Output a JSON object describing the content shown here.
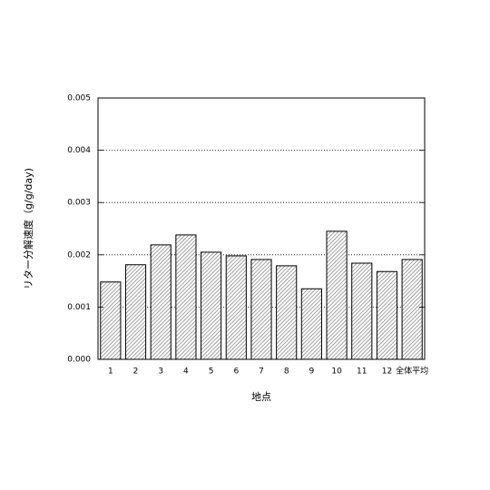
{
  "chart_data": {
    "type": "bar",
    "xlabel": "地点",
    "ylabel": "リター分解速度（g/g/day)",
    "categories": [
      "1",
      "2",
      "3",
      "4",
      "5",
      "6",
      "7",
      "8",
      "9",
      "10",
      "11",
      "12",
      "全体平均"
    ],
    "values": [
      0.00148,
      0.00181,
      0.00219,
      0.00238,
      0.00205,
      0.00198,
      0.00191,
      0.00179,
      0.00135,
      0.00245,
      0.00184,
      0.00168,
      0.00191
    ],
    "ylim": [
      0,
      0.005
    ],
    "yticks": [
      {
        "value": 0,
        "label": "0.000"
      },
      {
        "value": 0.001,
        "label": "0.001"
      },
      {
        "value": 0.002,
        "label": "0.002"
      },
      {
        "value": 0.003,
        "label": "0.003"
      },
      {
        "value": 0.004,
        "label": "0.004"
      },
      {
        "value": 0.005,
        "label": "0.005"
      }
    ],
    "grid": true
  }
}
